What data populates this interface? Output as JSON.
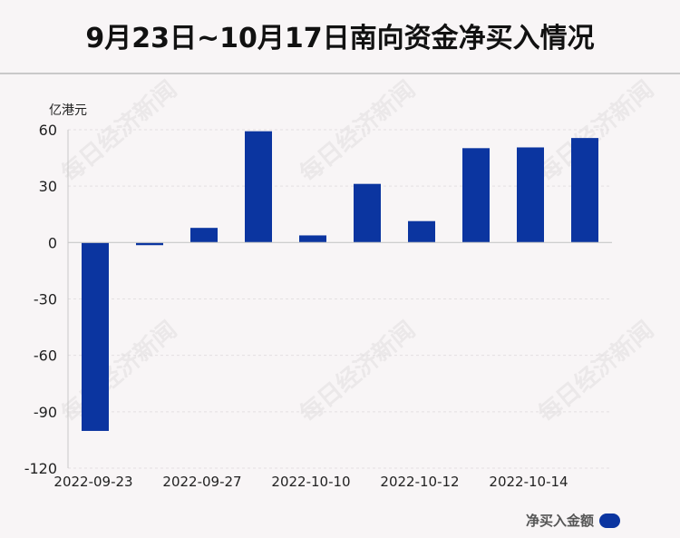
{
  "title": "9月23日~10月17日南向资金净买入情况",
  "watermark": "每日经济新闻",
  "colors": {
    "bar": "#0b35a0",
    "axis": "#c8c8c8",
    "grid": "#e4e0e2",
    "text": "#222222"
  },
  "chart_data": {
    "type": "bar",
    "unit_label": "亿港元",
    "categories": [
      "2022-09-23",
      "",
      "2022-09-27",
      "",
      "2022-10-10",
      "",
      "2022-10-12",
      "",
      "2022-10-14",
      ""
    ],
    "x_tick_labels": [
      "2022-09-23",
      "2022-09-27",
      "2022-10-10",
      "2022-10-12",
      "2022-10-14"
    ],
    "series": [
      {
        "name": "净买入金额",
        "values": [
          -100.2,
          -1.4,
          7.8,
          59.2,
          3.8,
          31.2,
          11.4,
          50.2,
          50.6,
          55.6
        ]
      }
    ],
    "ylim": [
      -120,
      60
    ],
    "yticks": [
      60,
      30,
      0,
      -30,
      -60,
      -90,
      -120
    ],
    "grid": true,
    "legend_position": "bottom-right"
  }
}
